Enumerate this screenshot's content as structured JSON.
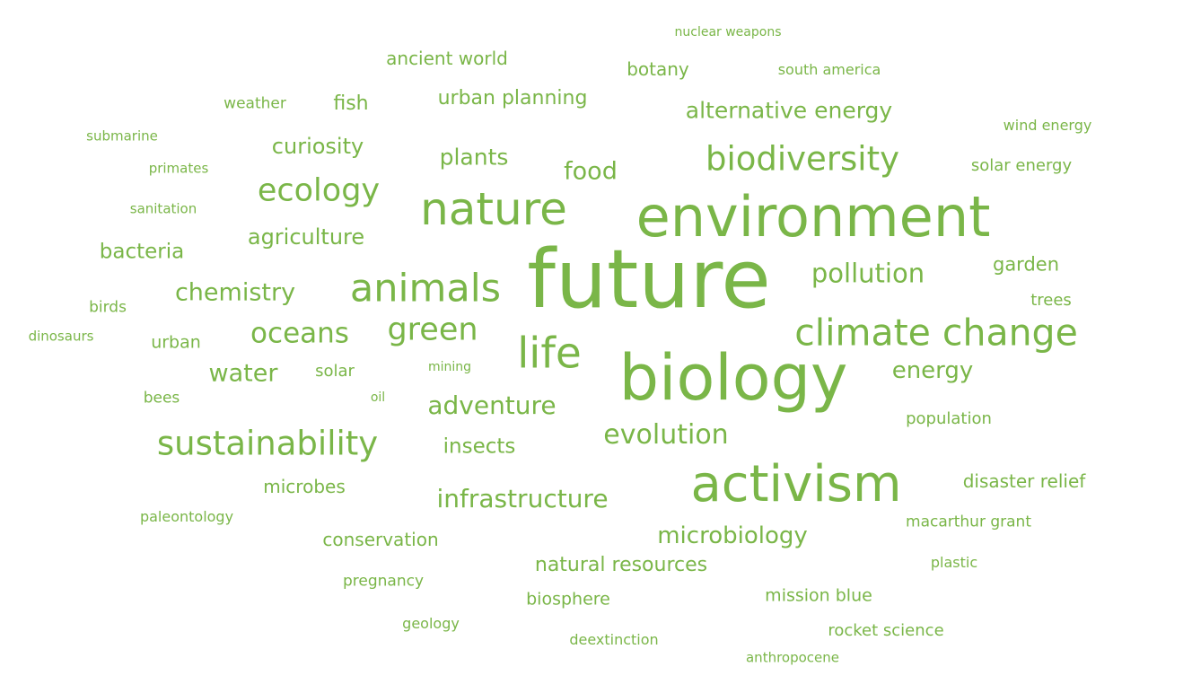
{
  "colors": {
    "word": "#7ab648",
    "background": "#ffffff"
  },
  "words": [
    "nuclear weapons",
    "ancient world",
    "botany",
    "south america",
    "weather",
    "fish",
    "urban planning",
    "alternative energy",
    "wind energy",
    "submarine",
    "curiosity",
    "plants",
    "food",
    "biodiversity",
    "solar energy",
    "primates",
    "ecology",
    "nature",
    "environment",
    "sanitation",
    "agriculture",
    "bacteria",
    "future",
    "pollution",
    "garden",
    "chemistry",
    "animals",
    "trees",
    "birds",
    "climate change",
    "dinosaurs",
    "urban",
    "oceans",
    "green",
    "life",
    "water",
    "solar",
    "mining",
    "biology",
    "energy",
    "bees",
    "oil",
    "adventure",
    "population",
    "sustainability",
    "insects",
    "evolution",
    "activism",
    "disaster relief",
    "microbes",
    "infrastructure",
    "paleontology",
    "macarthur grant",
    "conservation",
    "microbiology",
    "natural resources",
    "plastic",
    "pregnancy",
    "biosphere",
    "mission blue",
    "geology",
    "deextinction",
    "rocket science",
    "anthropocene"
  ]
}
